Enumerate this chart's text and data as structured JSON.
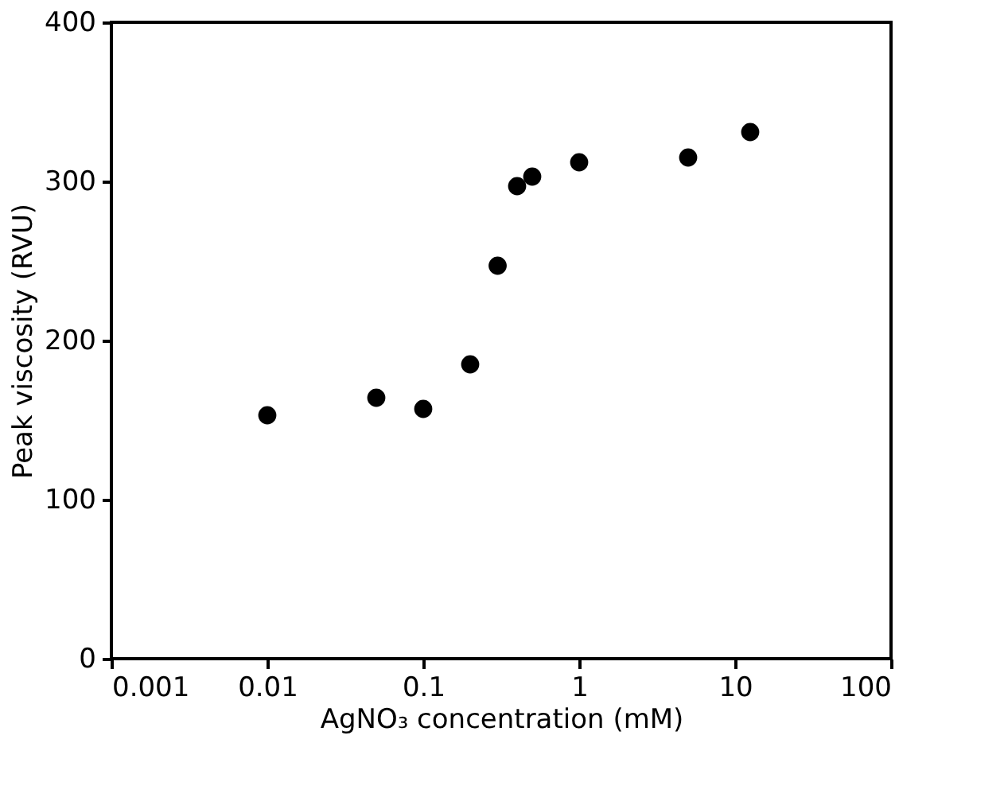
{
  "chart_data": {
    "type": "scatter",
    "xlabel": "AgNO₃ concentration (mM)",
    "ylabel": "Peak viscosity (RVU)",
    "x": [
      0.01,
      0.05,
      0.1,
      0.2,
      0.3,
      0.4,
      0.5,
      1,
      5,
      12.5
    ],
    "series": [
      {
        "color": "#000000",
        "values": [
          153,
          164,
          157,
          185,
          247,
          297,
          303,
          312,
          315,
          331
        ]
      }
    ],
    "log": "x",
    "xlim": [
      0.001,
      100
    ],
    "xticks": [
      0.001,
      0.01,
      0.1,
      1,
      10,
      100
    ],
    "ylim": [
      0,
      400
    ],
    "yticks": [
      0,
      100,
      200,
      300,
      400
    ],
    "grid": false,
    "marker": "circle"
  }
}
